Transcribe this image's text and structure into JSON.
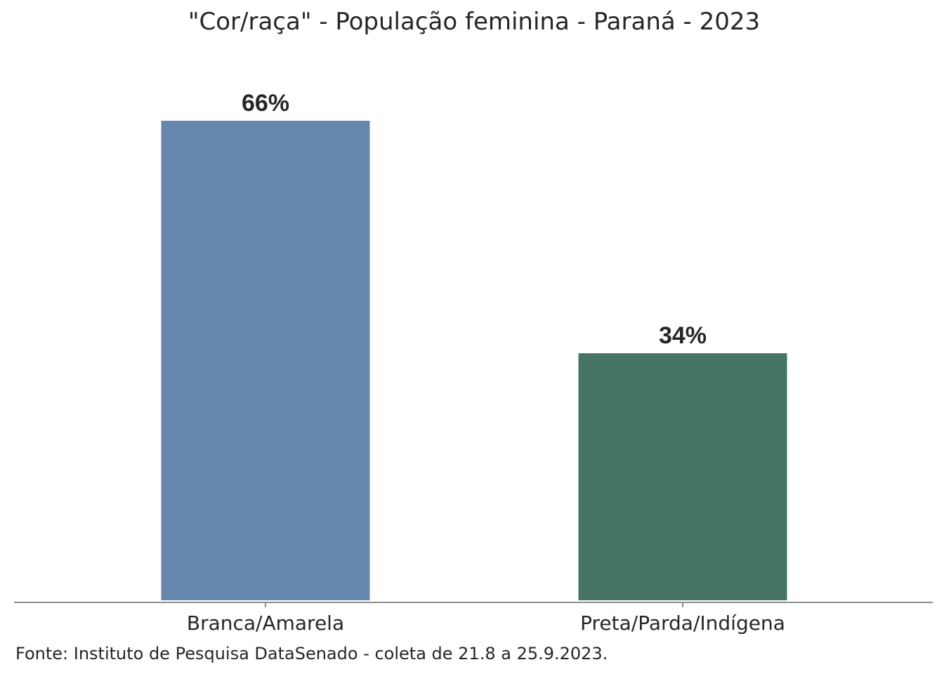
{
  "chart_data": {
    "type": "bar",
    "title": "\"Cor/raça\" - População feminina - Paraná - 2023",
    "categories": [
      "Branca/Amarela",
      "Preta/Parda/Indígena"
    ],
    "values": [
      66,
      34
    ],
    "value_labels": [
      "66%",
      "34%"
    ],
    "bar_colors": [
      "#6688ae",
      "#467563"
    ],
    "ylim": [
      0,
      100
    ],
    "grid": false,
    "legend": "none",
    "source": "Fonte: Instituto de Pesquisa DataSenado - coleta de 21.8 a 25.9.2023."
  }
}
